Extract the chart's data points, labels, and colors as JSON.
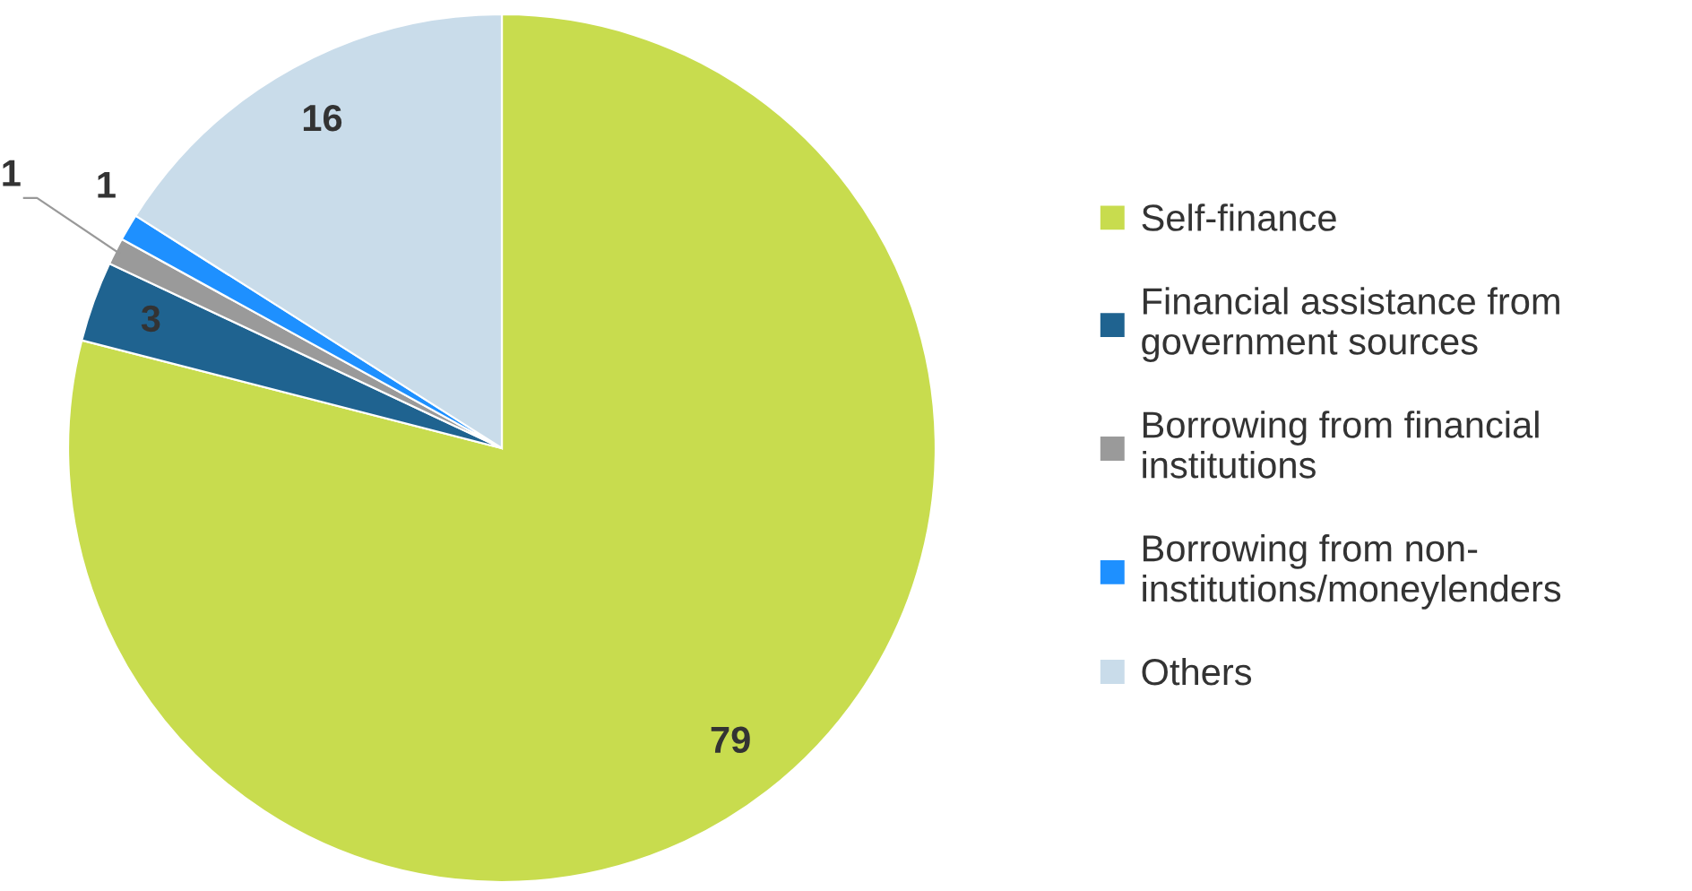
{
  "chart_data": {
    "type": "pie",
    "categories": [
      "Self-finance",
      "Financial assistance from\ngovernment sources",
      "Borrowing from financial\ninstitutions",
      "Borrowing from non-\ninstitutions/moneylenders",
      "Others"
    ],
    "values": [
      79,
      3,
      1,
      1,
      16
    ],
    "colors": [
      "#c8dc4e",
      "#1f6390",
      "#9a9a9a",
      "#1e90ff",
      "#c9dcea"
    ],
    "data_labels": true,
    "legend": "right"
  }
}
